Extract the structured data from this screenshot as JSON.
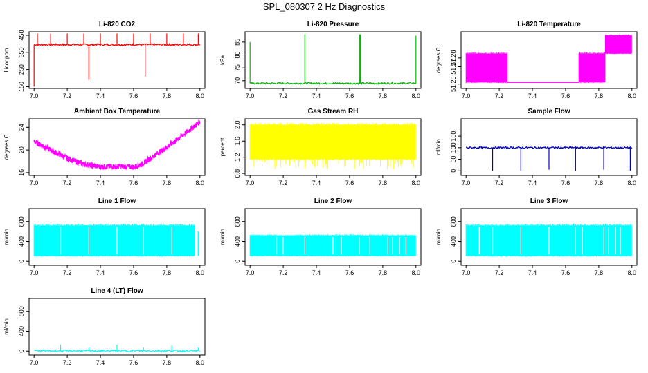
{
  "page": {
    "title": "SPL_080307  2 Hz Diagnostics"
  },
  "chart_data": [
    {
      "type": "line",
      "title": "Li-820 CO2",
      "ylabel": "Licor ppm",
      "color": "#ff0000",
      "xlim": [
        6.97,
        8.03
      ],
      "ylim": [
        140,
        470
      ],
      "xticks": [
        7.0,
        7.2,
        7.4,
        7.6,
        7.8,
        8.0
      ],
      "xtick_labels": [
        "7.0",
        "7.2",
        "7.4",
        "7.6",
        "7.8",
        "8.0"
      ],
      "yticks": [
        150,
        250,
        350,
        450
      ],
      "ytick_labels": [
        "150",
        "250",
        "350",
        "450"
      ],
      "pattern": "spiky",
      "baseline": [
        [
          7.0,
          395
        ],
        [
          8.0,
          395
        ]
      ],
      "spikes": [
        [
          7.0,
          150
        ],
        [
          7.33,
          190
        ],
        [
          7.67,
          210
        ],
        [
          7.02,
          460
        ],
        [
          7.1,
          460
        ],
        [
          7.2,
          460
        ],
        [
          7.3,
          460
        ],
        [
          7.4,
          460
        ],
        [
          7.5,
          460
        ],
        [
          7.6,
          460
        ],
        [
          7.7,
          460
        ],
        [
          7.8,
          460
        ],
        [
          7.9,
          460
        ],
        [
          7.99,
          460
        ]
      ]
    },
    {
      "type": "line",
      "title": "Li-820 Pressure",
      "ylabel": "kPa",
      "color": "#00bb00",
      "xlim": [
        6.97,
        8.03
      ],
      "ylim": [
        67,
        89
      ],
      "xticks": [
        7.0,
        7.2,
        7.4,
        7.6,
        7.8,
        8.0
      ],
      "xtick_labels": [
        "7.0",
        "7.2",
        "7.4",
        "7.6",
        "7.8",
        "8.0"
      ],
      "yticks": [
        70,
        75,
        80,
        85
      ],
      "ytick_labels": [
        "70",
        "75",
        "80",
        "85"
      ],
      "pattern": "spiky",
      "baseline": [
        [
          7.0,
          69.0
        ],
        [
          8.0,
          69.0
        ]
      ],
      "spikes": [
        [
          7.0,
          85
        ],
        [
          7.33,
          88
        ],
        [
          7.66,
          88
        ],
        [
          7.665,
          88
        ],
        [
          8.0,
          87.5
        ]
      ]
    },
    {
      "type": "line",
      "title": "Li-820 Temperature",
      "ylabel": "degrees C",
      "color": "#ff00ff",
      "xlim": [
        6.97,
        8.03
      ],
      "ylim": [
        51.245,
        51.31
      ],
      "xticks": [
        7.0,
        7.2,
        7.4,
        7.6,
        7.8,
        8.0
      ],
      "xtick_labels": [
        "7.0",
        "7.2",
        "7.4",
        "7.6",
        "7.8",
        "8.0"
      ],
      "yticks": [
        51.25,
        51.27,
        51.28
      ],
      "ytick_labels": [
        "51.25",
        "51.27",
        "51.28"
      ],
      "pattern": "band",
      "bands": [
        [
          7.0,
          7.25,
          51.252,
          51.285
        ],
        [
          7.68,
          7.84,
          51.252,
          51.285
        ],
        [
          7.84,
          8.0,
          51.285,
          51.306
        ]
      ],
      "baseline": [
        [
          7.25,
          51.252
        ],
        [
          7.68,
          51.252
        ]
      ]
    },
    {
      "type": "line",
      "title": "Ambient Box Temperature",
      "ylabel": "degrees C",
      "color": "#ff00ff",
      "xlim": [
        6.97,
        8.03
      ],
      "ylim": [
        15.5,
        25.5
      ],
      "xticks": [
        7.0,
        7.2,
        7.4,
        7.6,
        7.8,
        8.0
      ],
      "xtick_labels": [
        "7.0",
        "7.2",
        "7.4",
        "7.6",
        "7.8",
        "8.0"
      ],
      "yticks": [
        16,
        20,
        24
      ],
      "ytick_labels": [
        "16",
        "20",
        "24"
      ],
      "pattern": "noisy",
      "noise": 0.5,
      "baseline": [
        [
          7.0,
          21.5
        ],
        [
          7.1,
          20.0
        ],
        [
          7.2,
          18.5
        ],
        [
          7.3,
          17.5
        ],
        [
          7.4,
          17.0
        ],
        [
          7.5,
          17.1
        ],
        [
          7.6,
          17.0
        ],
        [
          7.65,
          17.5
        ],
        [
          7.7,
          18.5
        ],
        [
          7.8,
          20.5
        ],
        [
          7.9,
          22.7
        ],
        [
          8.0,
          25.0
        ]
      ]
    },
    {
      "type": "line",
      "title": "Gas Stream RH",
      "ylabel": "percent",
      "color": "#ffff00",
      "xlim": [
        6.97,
        8.03
      ],
      "ylim": [
        0.75,
        2.15
      ],
      "xticks": [
        7.0,
        7.2,
        7.4,
        7.6,
        7.8,
        8.0
      ],
      "xtick_labels": [
        "7.0",
        "7.2",
        "7.4",
        "7.6",
        "7.8",
        "8.0"
      ],
      "yticks": [
        0.8,
        1.2,
        1.6,
        2.0
      ],
      "ytick_labels": [
        "0.8",
        "1.2",
        "1.6",
        "2.0"
      ],
      "pattern": "band",
      "bands": [
        [
          7.0,
          8.0,
          1.15,
          2.0
        ]
      ],
      "extra_low": 0.9
    },
    {
      "type": "line",
      "title": "Sample Flow",
      "ylabel": "ml/min",
      "color": "#0000cc",
      "xlim": [
        6.97,
        8.03
      ],
      "ylim": [
        -20,
        225
      ],
      "xticks": [
        7.0,
        7.2,
        7.4,
        7.6,
        7.8,
        8.0
      ],
      "xtick_labels": [
        "7.0",
        "7.2",
        "7.4",
        "7.6",
        "7.8",
        "8.0"
      ],
      "yticks": [
        0,
        50,
        100,
        150
      ],
      "ytick_labels": [
        "0",
        "50",
        "100",
        "150"
      ],
      "pattern": "spiky",
      "baseline": [
        [
          7.0,
          100
        ],
        [
          8.0,
          100
        ]
      ],
      "spikes": [
        [
          7.16,
          0
        ],
        [
          7.33,
          0
        ],
        [
          7.5,
          5
        ],
        [
          7.66,
          0
        ],
        [
          7.83,
          5
        ],
        [
          7.99,
          0
        ]
      ]
    },
    {
      "type": "line",
      "title": "Line 1 Flow",
      "ylabel": "ml/min",
      "color": "#00ffff",
      "xlim": [
        6.97,
        8.03
      ],
      "ylim": [
        -80,
        1060
      ],
      "xticks": [
        7.0,
        7.2,
        7.4,
        7.6,
        7.8,
        8.0
      ],
      "xtick_labels": [
        "7.0",
        "7.2",
        "7.4",
        "7.6",
        "7.8",
        "8.0"
      ],
      "yticks": [
        0,
        400,
        800
      ],
      "ytick_labels": [
        "0",
        "400",
        "800"
      ],
      "pattern": "band",
      "bands": [
        [
          7.0,
          7.97,
          110,
          720
        ]
      ],
      "gaps": [
        7.16,
        7.33,
        7.5,
        7.66,
        7.83
      ],
      "tail": [
        7.99,
        600
      ]
    },
    {
      "type": "line",
      "title": "Line 2 Flow",
      "ylabel": "ml/min",
      "color": "#00ffff",
      "xlim": [
        6.97,
        8.03
      ],
      "ylim": [
        -80,
        1060
      ],
      "xticks": [
        7.0,
        7.2,
        7.4,
        7.6,
        7.8,
        8.0
      ],
      "xtick_labels": [
        "7.0",
        "7.2",
        "7.4",
        "7.6",
        "7.8",
        "8.0"
      ],
      "yticks": [
        0,
        400,
        800
      ],
      "ytick_labels": [
        "0",
        "400",
        "800"
      ],
      "pattern": "band",
      "bands": [
        [
          7.0,
          8.0,
          110,
          520
        ]
      ],
      "gaps": [
        7.16,
        7.2,
        7.33,
        7.5,
        7.55,
        7.66,
        7.72,
        7.83,
        7.86,
        7.9,
        7.94
      ]
    },
    {
      "type": "line",
      "title": "Line 3 Flow",
      "ylabel": "ml/min",
      "color": "#00ffff",
      "xlim": [
        6.97,
        8.03
      ],
      "ylim": [
        -80,
        1060
      ],
      "xticks": [
        7.0,
        7.2,
        7.4,
        7.6,
        7.8,
        8.0
      ],
      "xtick_labels": [
        "7.0",
        "7.2",
        "7.4",
        "7.6",
        "7.8",
        "8.0"
      ],
      "yticks": [
        0,
        400,
        800
      ],
      "ytick_labels": [
        "0",
        "400",
        "800"
      ],
      "pattern": "band",
      "bands": [
        [
          7.0,
          8.0,
          110,
          720
        ]
      ],
      "gaps": [
        7.08,
        7.16,
        7.33,
        7.5,
        7.66,
        7.7,
        7.83,
        7.86,
        7.9,
        7.93
      ]
    },
    {
      "type": "line",
      "title": "Line 4 (LT) Flow",
      "ylabel": "ml/min",
      "color": "#00ffff",
      "xlim": [
        6.97,
        8.03
      ],
      "ylim": [
        -80,
        1060
      ],
      "xticks": [
        7.0,
        7.2,
        7.4,
        7.6,
        7.8,
        8.0
      ],
      "xtick_labels": [
        "7.0",
        "7.2",
        "7.4",
        "7.6",
        "7.8",
        "8.0"
      ],
      "yticks": [
        0,
        400,
        800
      ],
      "ytick_labels": [
        "0",
        "400",
        "800"
      ],
      "pattern": "spiky",
      "baseline": [
        [
          7.0,
          5
        ],
        [
          8.0,
          5
        ]
      ],
      "spikes": [
        [
          7.16,
          130
        ],
        [
          7.33,
          70
        ],
        [
          7.5,
          130
        ],
        [
          7.66,
          70
        ],
        [
          7.83,
          110
        ],
        [
          7.99,
          70
        ]
      ]
    }
  ]
}
